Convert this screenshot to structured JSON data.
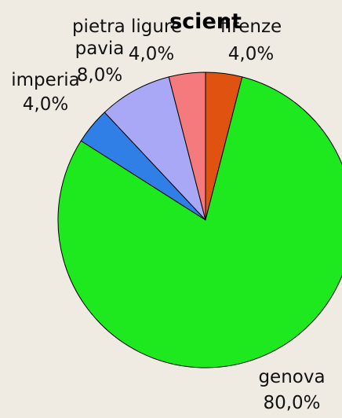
{
  "chart_data": {
    "type": "pie",
    "title": "scient",
    "start_angle_deg": 0,
    "direction": "clockwise",
    "slices": [
      {
        "label": "firenze",
        "percent_label": "4,0%",
        "value": 4.0,
        "color": "#e0520f"
      },
      {
        "label": "genova",
        "percent_label": "80,0%",
        "value": 80.0,
        "color": "#1ee81e"
      },
      {
        "label": "imperia",
        "percent_label": "4,0%",
        "value": 4.0,
        "color": "#2f7fe6"
      },
      {
        "label": "pavia",
        "percent_label": "8,0%",
        "value": 8.0,
        "color": "#a8a8f7"
      },
      {
        "label": "pietra ligure",
        "percent_label": "4,0%",
        "value": 4.0,
        "color": "#f57a7d"
      }
    ]
  }
}
